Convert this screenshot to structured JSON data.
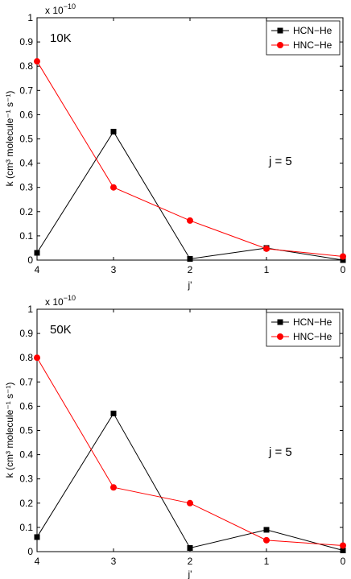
{
  "colors": {
    "hcn": "#000000",
    "hnc": "#ff0000",
    "axis": "#000000",
    "background": "#ffffff"
  },
  "chart_data": [
    {
      "type": "line",
      "panel_label": "10K",
      "annotation": "j = 5",
      "xlabel": "j'",
      "ylabel": "k (cm³ molecule⁻¹ s⁻¹)",
      "y_scale_label": "x 10",
      "y_scale_exponent": "−10",
      "categories": [
        "4",
        "3",
        "2",
        "1",
        "0"
      ],
      "ylim": [
        0,
        1
      ],
      "yticks": [
        "0",
        "0.1",
        "0.2",
        "0.3",
        "0.4",
        "0.5",
        "0.6",
        "0.7",
        "0.8",
        "0.9",
        "1"
      ],
      "legend_position": "top-right",
      "series": [
        {
          "name": "HCN−He",
          "marker": "square",
          "values": [
            0.03,
            0.53,
            0.005,
            0.05,
            0.0
          ]
        },
        {
          "name": "HNC−He",
          "marker": "circle",
          "values": [
            0.82,
            0.3,
            0.163,
            0.047,
            0.015
          ]
        }
      ]
    },
    {
      "type": "line",
      "panel_label": "50K",
      "annotation": "j = 5",
      "xlabel": "j'",
      "ylabel": "k (cm³ molecule⁻¹ s⁻¹)",
      "y_scale_label": "x 10",
      "y_scale_exponent": "−10",
      "categories": [
        "4",
        "3",
        "2",
        "1",
        "0"
      ],
      "ylim": [
        0,
        1
      ],
      "yticks": [
        "0",
        "0.1",
        "0.2",
        "0.3",
        "0.4",
        "0.5",
        "0.6",
        "0.7",
        "0.8",
        "0.9",
        "1"
      ],
      "legend_position": "top-right",
      "series": [
        {
          "name": "HCN−He",
          "marker": "square",
          "values": [
            0.06,
            0.57,
            0.015,
            0.09,
            0.005
          ]
        },
        {
          "name": "HNC−He",
          "marker": "circle",
          "values": [
            0.8,
            0.265,
            0.2,
            0.047,
            0.025
          ]
        }
      ]
    }
  ]
}
